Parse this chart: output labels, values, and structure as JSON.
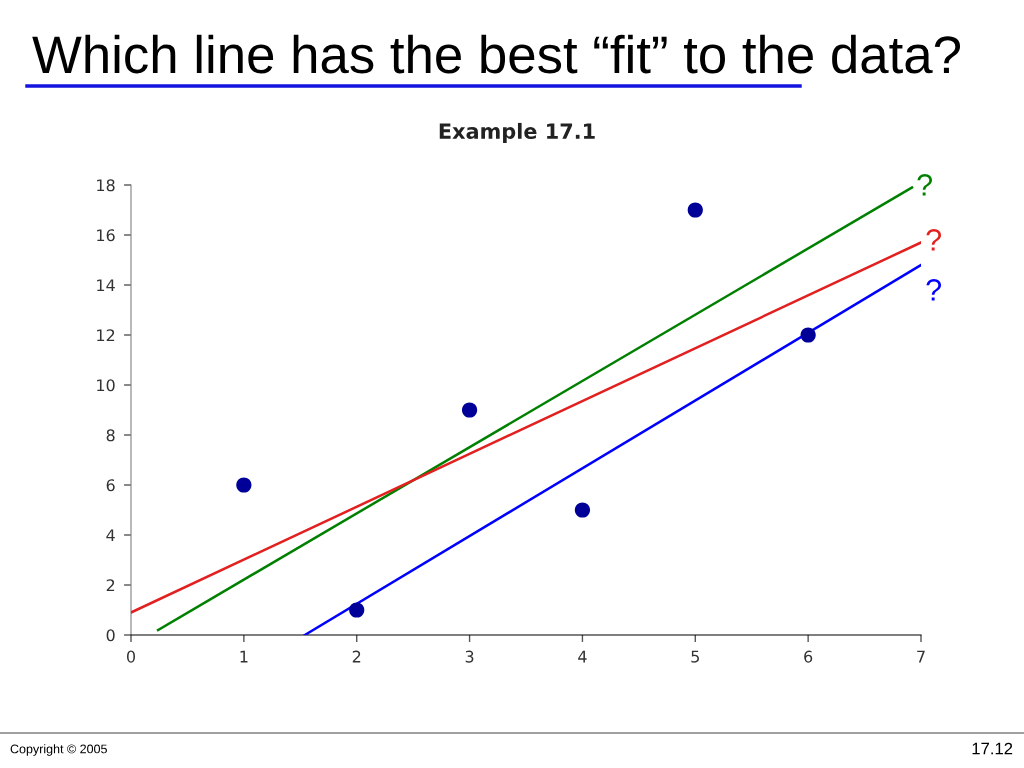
{
  "chart_data": {
    "type": "scatter",
    "title": "Which line has the best “fit” to the data?",
    "subtitle": "Example 17.1",
    "xlim": [
      0,
      7
    ],
    "xticks": [
      0,
      1,
      2,
      3,
      4,
      5,
      6,
      7
    ],
    "ylim": [
      0,
      18
    ],
    "yticks": [
      0,
      2,
      4,
      6,
      8,
      10,
      12,
      14,
      16,
      18
    ],
    "line_style": "solid",
    "series": [
      {
        "marker": "circle",
        "color": "#000099",
        "x": [
          1,
          2,
          3,
          4,
          5,
          6
        ],
        "values": [
          6,
          1,
          9,
          5,
          17,
          12
        ]
      },
      {
        "type": "line",
        "name": "?",
        "color": "#008000",
        "x": [
          0.24,
          6.92
        ],
        "values": [
          0.2,
          17.9
        ]
      },
      {
        "type": "line",
        "name": "?",
        "color": "#e32020",
        "x": [
          0,
          7
        ],
        "values": [
          0.9,
          15.7
        ]
      },
      {
        "type": "line",
        "name": "?",
        "color": "#0000ff",
        "x": [
          1.54,
          7
        ],
        "values": [
          0,
          14.8
        ]
      }
    ],
    "annotations": [
      "Copyright © 2005",
      "17.12"
    ]
  }
}
